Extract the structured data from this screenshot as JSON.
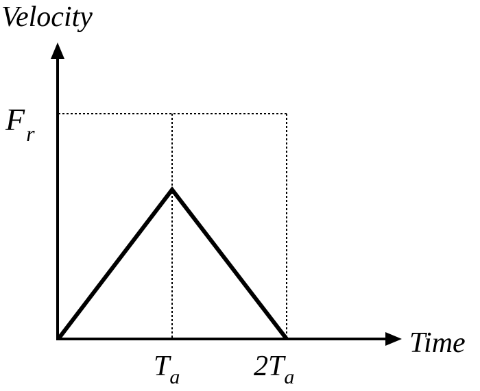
{
  "diagram": {
    "y_axis_label": "Velocity",
    "x_axis_label": "Time",
    "y_marker_label": {
      "main": "F",
      "sub": "r"
    },
    "x_markers": [
      {
        "main": "T",
        "sub": "a"
      },
      {
        "main": "2T",
        "sub": "a"
      }
    ],
    "colors": {
      "line": "#000000",
      "background": "#ffffff"
    }
  }
}
